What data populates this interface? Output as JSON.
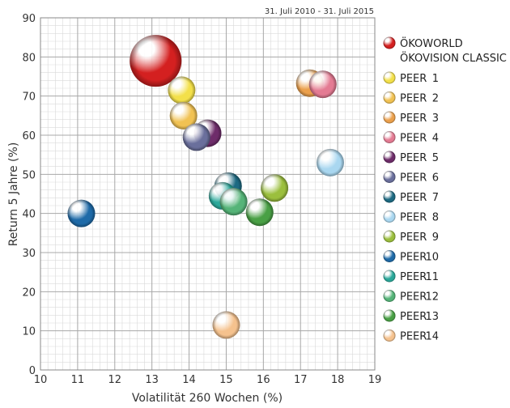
{
  "chart_data": {
    "type": "scatter",
    "subtitle": "31. Juli 2010 - 31. Juli 2015",
    "xlabel": "Volatilität 260 Wochen (%)",
    "ylabel": "Return 5 Jahre (%)",
    "xlim": [
      10,
      19
    ],
    "ylim": [
      0,
      90
    ],
    "x_ticks": [
      "10",
      "11",
      "12",
      "13",
      "14",
      "15",
      "16",
      "17",
      "18",
      "19"
    ],
    "y_ticks": [
      "0",
      "10",
      "20",
      "30",
      "40",
      "50",
      "60",
      "70",
      "80",
      "90"
    ],
    "grid": true,
    "legend_position": "right",
    "series": [
      {
        "name": "ÖKOWORLD ÖKOVISION CLASSIC",
        "label_lines": [
          "ÖKOWORLD",
          "ÖKOVISION CLASSIC"
        ],
        "x": 13.1,
        "y": 79,
        "color": "#d42020"
      },
      {
        "name": "PEER 1",
        "label_lines": [
          "PEER",
          "1"
        ],
        "x": 13.8,
        "y": 71.5,
        "color": "#f3e04a"
      },
      {
        "name": "PEER 2",
        "label_lines": [
          "PEER",
          "2"
        ],
        "x": 13.85,
        "y": 65,
        "color": "#f1c253"
      },
      {
        "name": "PEER 3",
        "label_lines": [
          "PEER",
          "3"
        ],
        "x": 17.25,
        "y": 73.3,
        "color": "#eba04c"
      },
      {
        "name": "PEER 4",
        "label_lines": [
          "PEER",
          "4"
        ],
        "x": 17.6,
        "y": 73,
        "color": "#e47b93"
      },
      {
        "name": "PEER 5",
        "label_lines": [
          "PEER",
          "5"
        ],
        "x": 14.5,
        "y": 60.5,
        "color": "#6e2c6a"
      },
      {
        "name": "PEER 6",
        "label_lines": [
          "PEER",
          "6"
        ],
        "x": 14.2,
        "y": 59.5,
        "color": "#6a6f9c"
      },
      {
        "name": "PEER 7",
        "label_lines": [
          "PEER",
          "7"
        ],
        "x": 15.05,
        "y": 47,
        "color": "#1d6a82"
      },
      {
        "name": "PEER 8",
        "label_lines": [
          "PEER",
          "8"
        ],
        "x": 17.8,
        "y": 53,
        "color": "#a9d7f0"
      },
      {
        "name": "PEER 9",
        "label_lines": [
          "PEER",
          "9"
        ],
        "x": 16.3,
        "y": 46.5,
        "color": "#9bbf3d"
      },
      {
        "name": "PEER 10",
        "label_lines": [
          "PEER",
          "10"
        ],
        "x": 11.1,
        "y": 40,
        "color": "#1e6aa8"
      },
      {
        "name": "PEER 11",
        "label_lines": [
          "PEER",
          "11"
        ],
        "x": 14.9,
        "y": 44.5,
        "color": "#2aa89a"
      },
      {
        "name": "PEER 12",
        "label_lines": [
          "PEER",
          "12"
        ],
        "x": 15.2,
        "y": 43,
        "color": "#55b478"
      },
      {
        "name": "PEER 13",
        "label_lines": [
          "PEER",
          "13"
        ],
        "x": 15.9,
        "y": 40.3,
        "color": "#49a045"
      },
      {
        "name": "PEER 14",
        "label_lines": [
          "PEER",
          "14"
        ],
        "x": 15,
        "y": 11.5,
        "color": "#f5c28e"
      }
    ]
  }
}
